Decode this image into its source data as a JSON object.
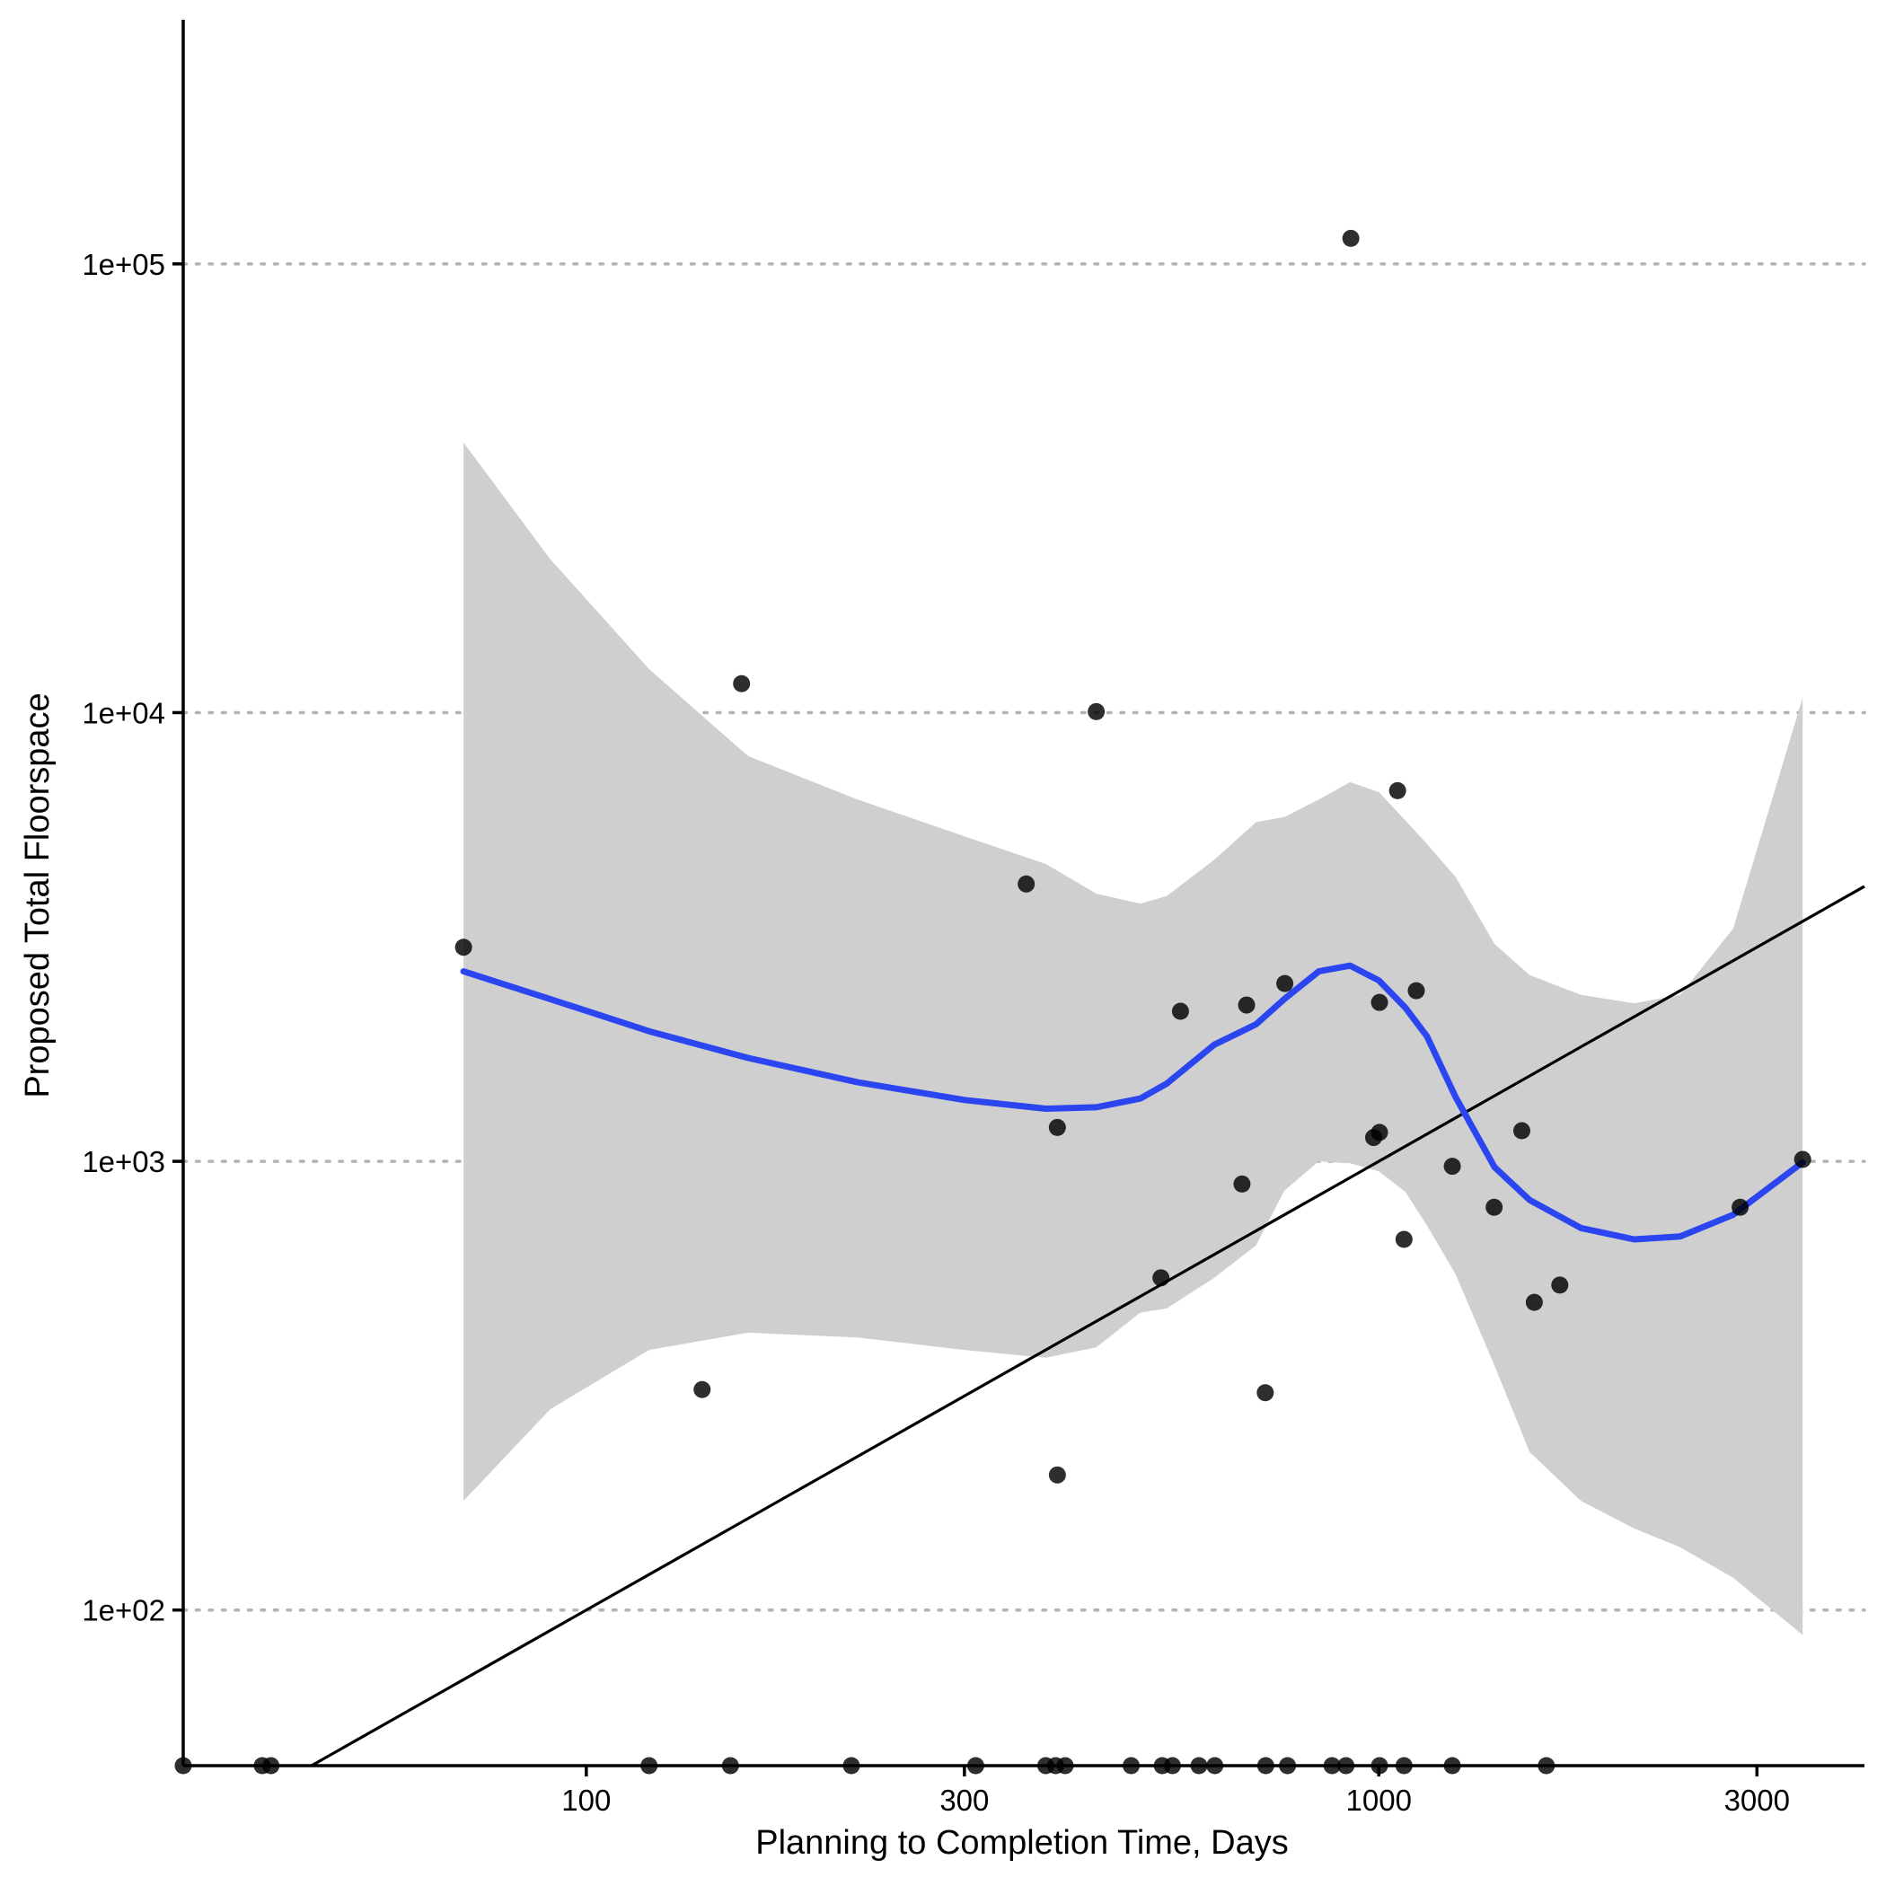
{
  "chart_data": {
    "type": "scatter",
    "xlabel": "Planning to Completion Time, Days",
    "ylabel": "Proposed Total Floorspace",
    "x_scale": "log10",
    "y_scale": "log10",
    "xlim": [
      31,
      4100
    ],
    "ylim": [
      45,
      350000
    ],
    "x_ticks": [
      {
        "value": 100,
        "label": "100"
      },
      {
        "value": 300,
        "label": "300"
      },
      {
        "value": 1000,
        "label": "1000"
      },
      {
        "value": 3000,
        "label": "3000"
      }
    ],
    "y_ticks": [
      {
        "value": 100,
        "label": "1e+02"
      },
      {
        "value": 1000,
        "label": "1e+03"
      },
      {
        "value": 10000,
        "label": "1e+04"
      },
      {
        "value": 100000,
        "label": "1e+05"
      }
    ],
    "grid": "horizontal dotted at y ticks",
    "colors": {
      "points": "#000000",
      "smooth_line": "#2b45f0",
      "confidence_band": "#cfcfcf",
      "reference_line": "#000000",
      "grid": "#b3b3b3"
    },
    "points": [
      {
        "x": 31,
        "y": 45
      },
      {
        "x": 39,
        "y": 45
      },
      {
        "x": 40,
        "y": 45
      },
      {
        "x": 120,
        "y": 45
      },
      {
        "x": 152,
        "y": 45
      },
      {
        "x": 216,
        "y": 45
      },
      {
        "x": 310,
        "y": 45
      },
      {
        "x": 380,
        "y": 45
      },
      {
        "x": 391,
        "y": 45
      },
      {
        "x": 402,
        "y": 45
      },
      {
        "x": 487,
        "y": 45
      },
      {
        "x": 533,
        "y": 45
      },
      {
        "x": 549,
        "y": 45
      },
      {
        "x": 593,
        "y": 45
      },
      {
        "x": 621,
        "y": 45
      },
      {
        "x": 720,
        "y": 45
      },
      {
        "x": 767,
        "y": 45
      },
      {
        "x": 873,
        "y": 45
      },
      {
        "x": 909,
        "y": 45
      },
      {
        "x": 1002,
        "y": 45
      },
      {
        "x": 1076,
        "y": 45
      },
      {
        "x": 1238,
        "y": 45
      },
      {
        "x": 1627,
        "y": 45
      },
      {
        "x": 70,
        "y": 3000
      },
      {
        "x": 140,
        "y": 310
      },
      {
        "x": 157,
        "y": 11600
      },
      {
        "x": 359,
        "y": 4150
      },
      {
        "x": 393,
        "y": 1190
      },
      {
        "x": 393,
        "y": 200
      },
      {
        "x": 440,
        "y": 10050
      },
      {
        "x": 531,
        "y": 550
      },
      {
        "x": 562,
        "y": 2160
      },
      {
        "x": 672,
        "y": 890
      },
      {
        "x": 681,
        "y": 2230
      },
      {
        "x": 719,
        "y": 305
      },
      {
        "x": 761,
        "y": 2490
      },
      {
        "x": 922,
        "y": 114000
      },
      {
        "x": 985,
        "y": 1130
      },
      {
        "x": 1002,
        "y": 1160
      },
      {
        "x": 1002,
        "y": 2260
      },
      {
        "x": 1056,
        "y": 6700
      },
      {
        "x": 1076,
        "y": 670
      },
      {
        "x": 1115,
        "y": 2400
      },
      {
        "x": 1238,
        "y": 975
      },
      {
        "x": 1398,
        "y": 790
      },
      {
        "x": 1515,
        "y": 1170
      },
      {
        "x": 1571,
        "y": 485
      },
      {
        "x": 1692,
        "y": 530
      },
      {
        "x": 2857,
        "y": 790
      },
      {
        "x": 3426,
        "y": 1010
      }
    ],
    "smooth": {
      "x": [
        70,
        90,
        120,
        160,
        220,
        300,
        380,
        440,
        500,
        540,
        620,
        700,
        760,
        840,
        920,
        1000,
        1080,
        1150,
        1250,
        1400,
        1550,
        1800,
        2100,
        2400,
        2800,
        3426
      ],
      "y": [
        2650,
        2300,
        1950,
        1700,
        1500,
        1370,
        1310,
        1320,
        1380,
        1490,
        1820,
        2020,
        2300,
        2650,
        2730,
        2530,
        2200,
        1900,
        1390,
        970,
        820,
        710,
        670,
        680,
        760,
        995
      ],
      "lower": [
        175,
        280,
        380,
        415,
        405,
        380,
        365,
        385,
        460,
        470,
        550,
        650,
        860,
        1000,
        990,
        950,
        855,
        720,
        560,
        350,
        225,
        175,
        152,
        138,
        118,
        88
      ],
      "upper": [
        40000,
        22000,
        12500,
        8000,
        6400,
        5300,
        4600,
        3950,
        3750,
        3900,
        4700,
        5700,
        5850,
        6400,
        7000,
        6650,
        5750,
        5100,
        4300,
        3050,
        2600,
        2350,
        2250,
        2350,
        3300,
        10800
      ]
    },
    "reference_line": {
      "type": "identity",
      "from": 31,
      "to": 4100
    }
  }
}
